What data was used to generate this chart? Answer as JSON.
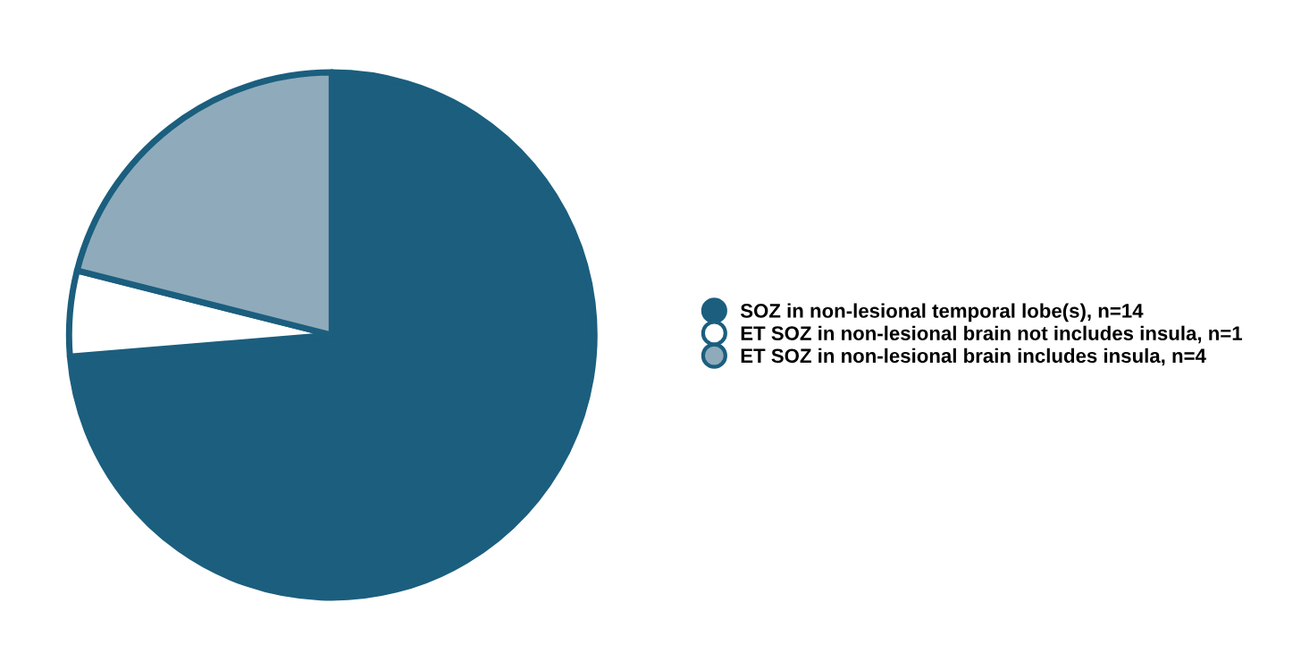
{
  "chart_data": {
    "type": "pie",
    "categories": [
      "SOZ in non-lesional temporal lobe(s), n=14",
      "ET SOZ in non-lesional brain not includes insula, n=1",
      "ET SOZ in non-lesional brain includes insula, n=4"
    ],
    "values": [
      14,
      1,
      4
    ],
    "colors": [
      "#1b5e7e",
      "#ffffff",
      "#8fabbb"
    ],
    "legend": "right"
  }
}
